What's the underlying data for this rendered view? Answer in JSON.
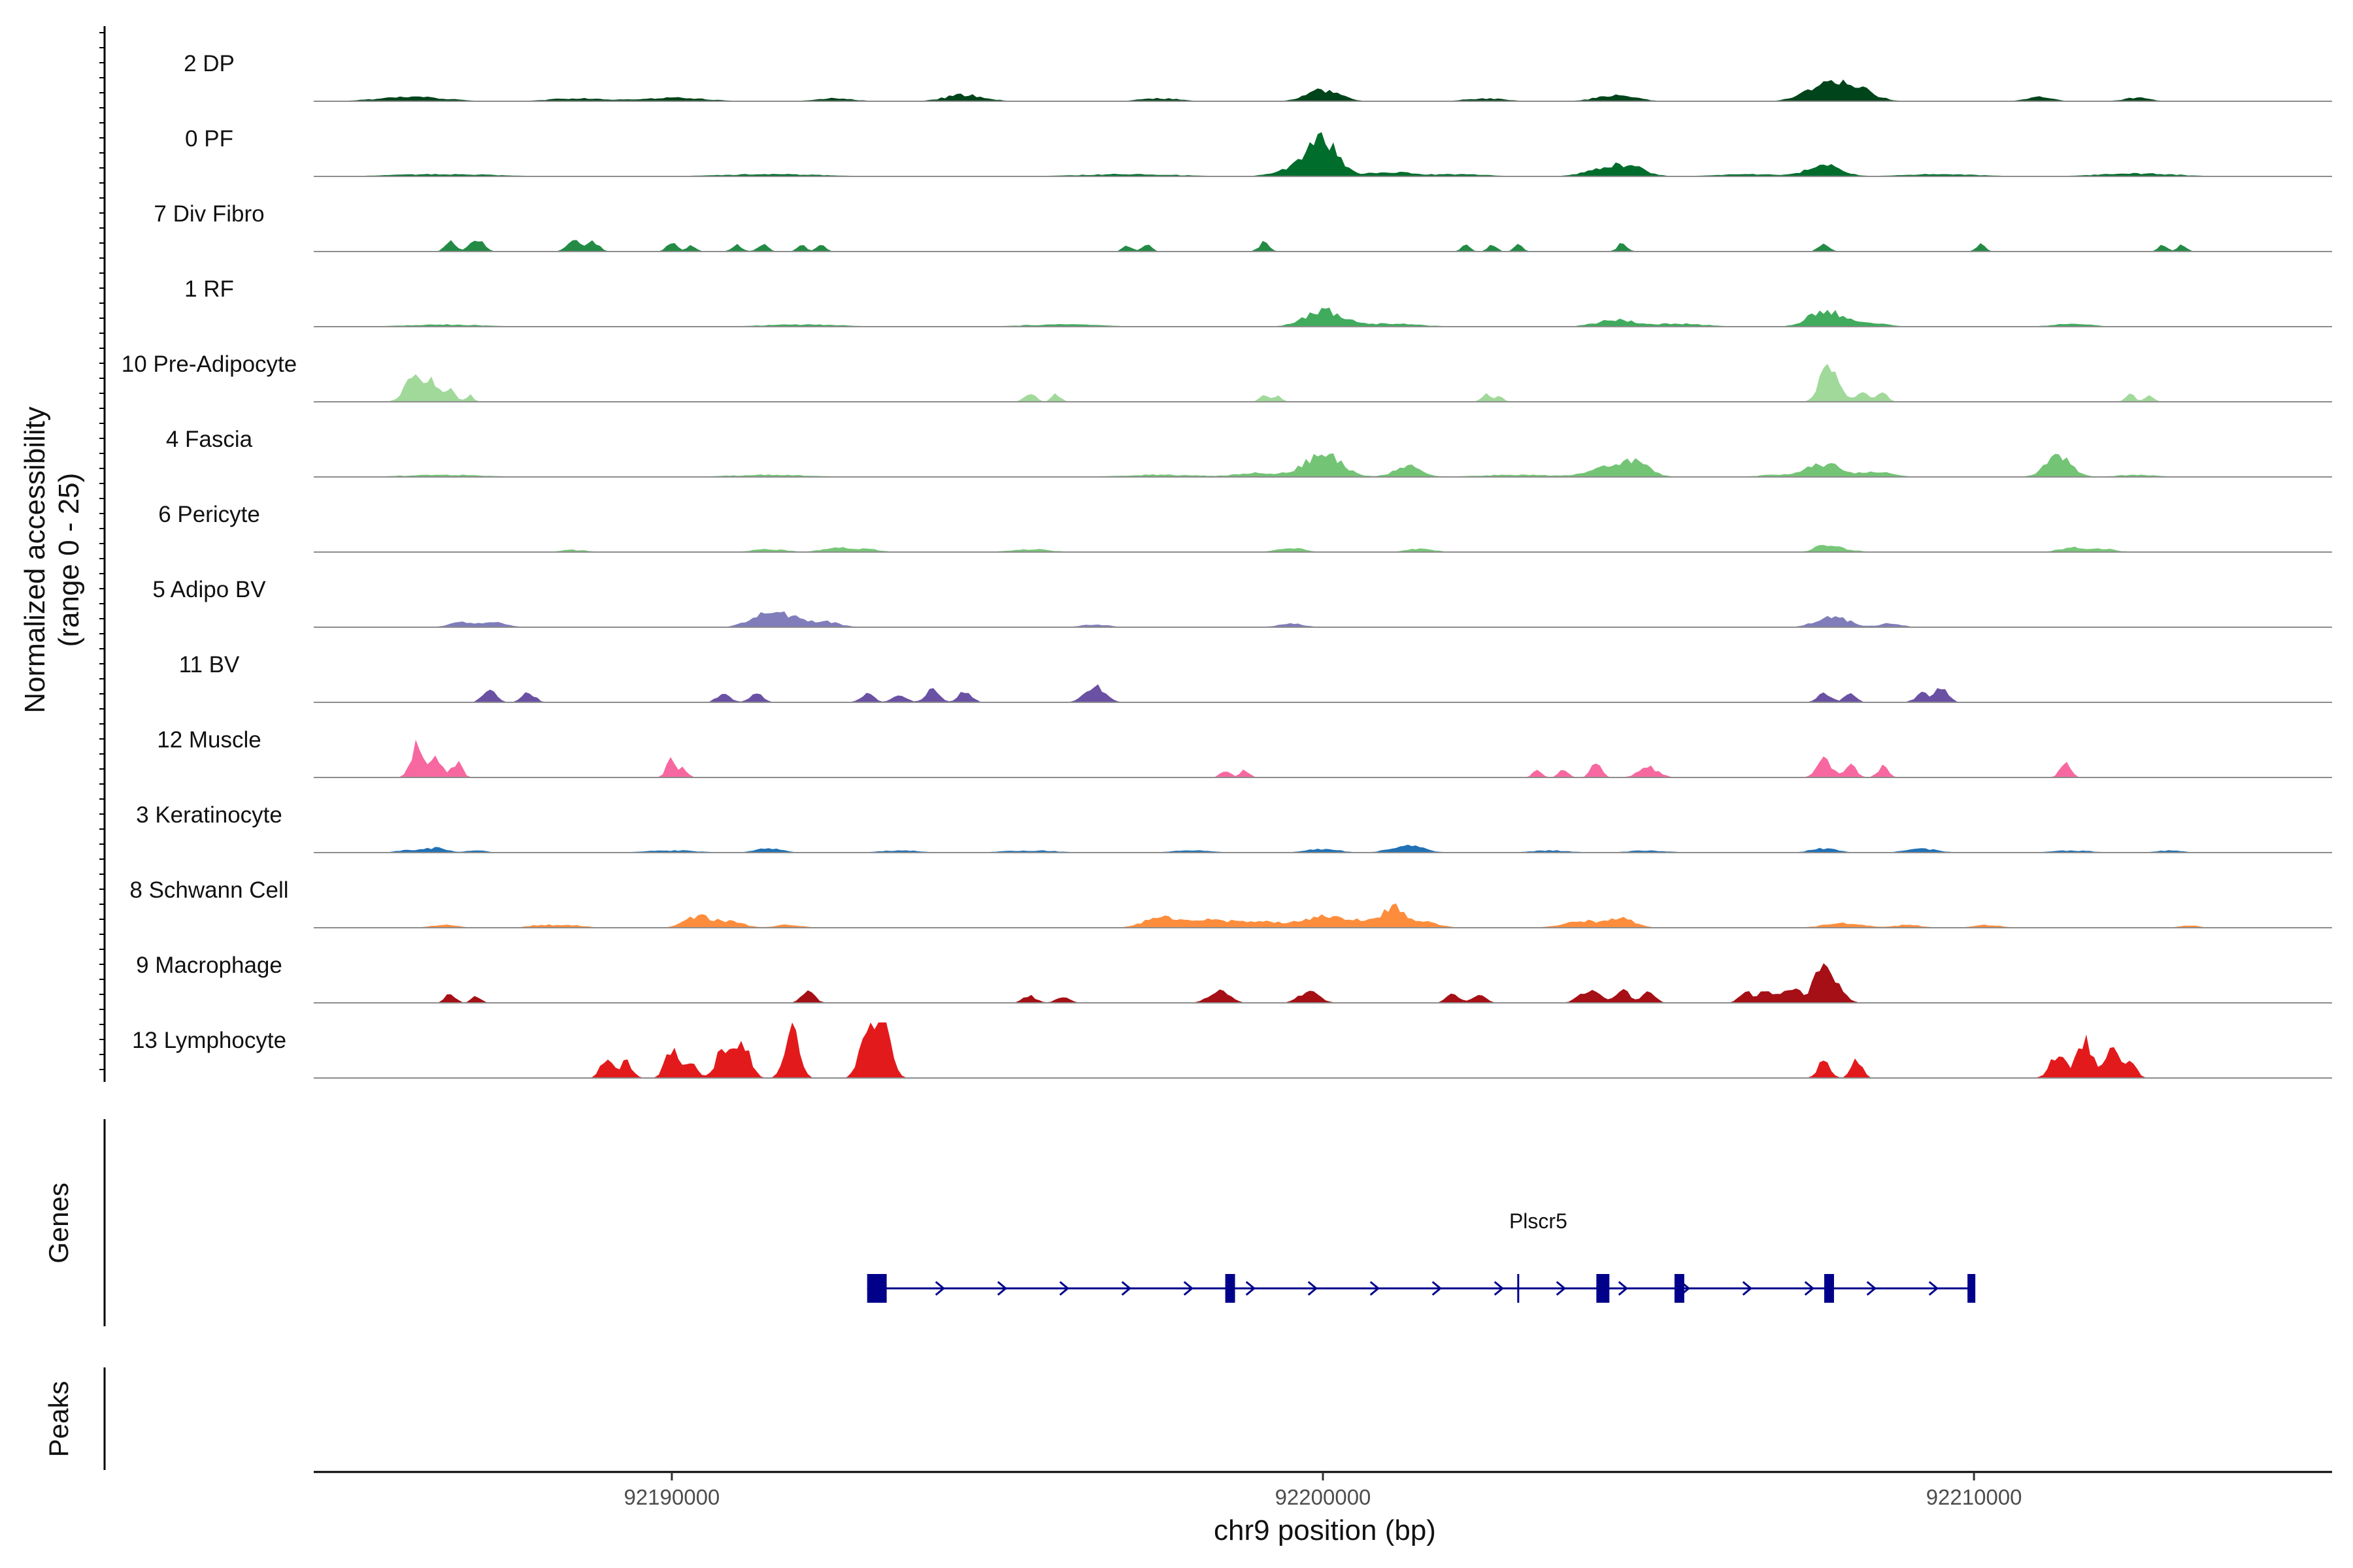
{
  "chart_data": {
    "type": "genome-browser-coverage",
    "ylabel_line1": "Normalized accessibility",
    "ylabel_line2": "(range 0 - 25)",
    "y_range": [
      0,
      25
    ],
    "xlabel": "chr9 position (bp)",
    "xlim": [
      92184500,
      92215500
    ],
    "x_ticks": [
      92190000,
      92200000,
      92210000
    ],
    "x_tick_labels": [
      "92190000",
      "92200000",
      "92210000"
    ],
    "panels": {
      "genes": "Genes",
      "peaks": "Peaks"
    },
    "tracks": [
      {
        "label": "2 DP",
        "color": "#00441b",
        "peaks": [
          [
            92186000,
            0.6,
            500
          ],
          [
            92188500,
            0.4,
            400
          ],
          [
            92190000,
            0.5,
            500
          ],
          [
            92192500,
            0.4,
            300
          ],
          [
            92194500,
            0.9,
            300
          ],
          [
            92197500,
            0.4,
            300
          ],
          [
            92200000,
            1.6,
            250
          ],
          [
            92202500,
            0.4,
            300
          ],
          [
            92204500,
            0.8,
            300
          ],
          [
            92207700,
            2.0,
            300
          ],
          [
            92208000,
            1.2,
            250
          ],
          [
            92208300,
            0.9,
            250
          ],
          [
            92211000,
            0.6,
            200
          ],
          [
            92212500,
            0.5,
            200
          ]
        ]
      },
      {
        "label": "0 PF",
        "color": "#006d2c",
        "peaks": [
          [
            92186500,
            0.3,
            800
          ],
          [
            92191500,
            0.3,
            800
          ],
          [
            92197000,
            0.3,
            800
          ],
          [
            92199500,
            1.0,
            250
          ],
          [
            92200000,
            5.0,
            230
          ],
          [
            92201000,
            0.6,
            300
          ],
          [
            92202000,
            0.3,
            500
          ],
          [
            92204300,
            0.9,
            300
          ],
          [
            92204700,
            1.2,
            250
          ],
          [
            92206500,
            0.3,
            500
          ],
          [
            92207700,
            1.5,
            250
          ],
          [
            92209500,
            0.3,
            600
          ],
          [
            92212500,
            0.4,
            600
          ]
        ]
      },
      {
        "label": "7 Div Fibro",
        "color": "#238b45",
        "peaks": [
          [
            92186600,
            1.4,
            80
          ],
          [
            92187000,
            1.8,
            100
          ],
          [
            92188500,
            1.6,
            100
          ],
          [
            92188800,
            1.3,
            90
          ],
          [
            92190000,
            1.1,
            80
          ],
          [
            92190300,
            0.9,
            70
          ],
          [
            92191000,
            1.0,
            80
          ],
          [
            92191400,
            1.1,
            80
          ],
          [
            92192000,
            0.9,
            70
          ],
          [
            92192300,
            0.9,
            70
          ],
          [
            92197000,
            0.9,
            70
          ],
          [
            92197300,
            0.9,
            70
          ],
          [
            92199100,
            1.3,
            80
          ],
          [
            92202200,
            0.9,
            70
          ],
          [
            92202600,
            0.9,
            70
          ],
          [
            92203000,
            0.9,
            70
          ],
          [
            92204600,
            1.1,
            80
          ],
          [
            92207700,
            1.2,
            80
          ],
          [
            92210100,
            1.0,
            70
          ],
          [
            92212900,
            0.9,
            70
          ],
          [
            92213200,
            0.9,
            70
          ]
        ]
      },
      {
        "label": "1 RF",
        "color": "#41ab5d",
        "peaks": [
          [
            92186500,
            0.3,
            600
          ],
          [
            92192000,
            0.3,
            600
          ],
          [
            92196000,
            0.3,
            600
          ],
          [
            92200000,
            2.2,
            280
          ],
          [
            92201000,
            0.4,
            500
          ],
          [
            92204500,
            0.9,
            300
          ],
          [
            92205500,
            0.4,
            400
          ],
          [
            92207700,
            2.2,
            240
          ],
          [
            92208300,
            0.6,
            300
          ],
          [
            92211500,
            0.4,
            300
          ]
        ]
      },
      {
        "label": "10 Pre-Adipocyte",
        "color": "#a1d99b",
        "peaks": [
          [
            92186000,
            3.4,
            120
          ],
          [
            92186300,
            3.1,
            110
          ],
          [
            92186600,
            1.6,
            80
          ],
          [
            92186900,
            0.9,
            60
          ],
          [
            92195500,
            1.3,
            80
          ],
          [
            92195900,
            1.0,
            70
          ],
          [
            92199100,
            0.9,
            70
          ],
          [
            92199300,
            0.9,
            70
          ],
          [
            92202500,
            1.0,
            70
          ],
          [
            92202700,
            0.9,
            60
          ],
          [
            92207700,
            4.4,
            100
          ],
          [
            92207900,
            3.0,
            100
          ],
          [
            92208300,
            1.4,
            100
          ],
          [
            92208600,
            1.1,
            80
          ],
          [
            92212400,
            1.0,
            70
          ],
          [
            92212700,
            0.9,
            70
          ]
        ]
      },
      {
        "label": "4 Fascia",
        "color": "#74c476",
        "peaks": [
          [
            92186500,
            0.3,
            600
          ],
          [
            92191500,
            0.3,
            600
          ],
          [
            92197500,
            0.3,
            600
          ],
          [
            92199000,
            0.6,
            300
          ],
          [
            92200000,
            3.2,
            280
          ],
          [
            92201300,
            1.5,
            200
          ],
          [
            92203000,
            0.3,
            600
          ],
          [
            92204300,
            1.1,
            250
          ],
          [
            92204800,
            2.0,
            220
          ],
          [
            92207000,
            0.3,
            300
          ],
          [
            92207700,
            1.8,
            250
          ],
          [
            92208500,
            0.7,
            250
          ],
          [
            92211300,
            2.7,
            200
          ],
          [
            92212500,
            0.3,
            300
          ]
        ]
      },
      {
        "label": "6 Pericyte",
        "color": "#78c679",
        "peaks": [
          [
            92188500,
            0.3,
            200
          ],
          [
            92191500,
            0.4,
            250
          ],
          [
            92192500,
            0.6,
            200
          ],
          [
            92193000,
            0.4,
            200
          ],
          [
            92195500,
            0.4,
            300
          ],
          [
            92199500,
            0.6,
            200
          ],
          [
            92201500,
            0.5,
            200
          ],
          [
            92207700,
            0.9,
            150
          ],
          [
            92208000,
            0.4,
            200
          ],
          [
            92211500,
            0.6,
            200
          ],
          [
            92212000,
            0.4,
            200
          ]
        ]
      },
      {
        "label": "5 Adipo BV",
        "color": "#807dba",
        "peaks": [
          [
            92186800,
            0.7,
            200
          ],
          [
            92187300,
            0.6,
            180
          ],
          [
            92191300,
            1.1,
            200
          ],
          [
            92191600,
            1.2,
            200
          ],
          [
            92191900,
            1.0,
            200
          ],
          [
            92192400,
            0.7,
            200
          ],
          [
            92196500,
            0.4,
            200
          ],
          [
            92199500,
            0.5,
            200
          ],
          [
            92207700,
            1.0,
            200
          ],
          [
            92208000,
            0.8,
            180
          ],
          [
            92208700,
            0.5,
            180
          ]
        ]
      },
      {
        "label": "11 BV",
        "color": "#6a51a3",
        "peaks": [
          [
            92187200,
            1.8,
            100
          ],
          [
            92187800,
            1.3,
            100
          ],
          [
            92190800,
            1.3,
            100
          ],
          [
            92191300,
            1.2,
            100
          ],
          [
            92193000,
            1.3,
            100
          ],
          [
            92193500,
            1.2,
            100
          ],
          [
            92194000,
            1.7,
            100
          ],
          [
            92194500,
            1.6,
            100
          ],
          [
            92196500,
            2.2,
            150
          ],
          [
            92207700,
            1.4,
            100
          ],
          [
            92208100,
            1.1,
            90
          ],
          [
            92209200,
            1.2,
            100
          ],
          [
            92209500,
            1.9,
            100
          ]
        ]
      },
      {
        "label": "12 Muscle",
        "color": "#f768a1",
        "peaks": [
          [
            92186100,
            4.6,
            100
          ],
          [
            92186400,
            2.6,
            80
          ],
          [
            92186700,
            2.0,
            80
          ],
          [
            92190000,
            2.4,
            80
          ],
          [
            92190200,
            1.1,
            60
          ],
          [
            92198500,
            1.1,
            70
          ],
          [
            92198800,
            1.1,
            70
          ],
          [
            92203300,
            1.0,
            70
          ],
          [
            92203700,
            1.2,
            70
          ],
          [
            92204200,
            2.0,
            80
          ],
          [
            92205000,
            1.4,
            150
          ],
          [
            92207700,
            2.6,
            110
          ],
          [
            92208100,
            1.7,
            90
          ],
          [
            92208600,
            1.5,
            80
          ],
          [
            92211400,
            2.0,
            80
          ]
        ]
      },
      {
        "label": "3 Keratinocyte",
        "color": "#2171b5",
        "peaks": [
          [
            92186000,
            0.4,
            200
          ],
          [
            92186400,
            0.6,
            150
          ],
          [
            92187000,
            0.3,
            150
          ],
          [
            92190000,
            0.3,
            400
          ],
          [
            92191500,
            0.6,
            200
          ],
          [
            92193500,
            0.3,
            300
          ],
          [
            92195500,
            0.3,
            400
          ],
          [
            92198000,
            0.3,
            300
          ],
          [
            92200000,
            0.5,
            250
          ],
          [
            92201300,
            1.0,
            250
          ],
          [
            92203500,
            0.3,
            300
          ],
          [
            92205000,
            0.3,
            300
          ],
          [
            92207700,
            0.6,
            200
          ],
          [
            92209200,
            0.5,
            250
          ],
          [
            92211500,
            0.3,
            300
          ],
          [
            92213000,
            0.3,
            200
          ]
        ]
      },
      {
        "label": "8 Schwann Cell",
        "color": "#fd8d3c",
        "peaks": [
          [
            92186500,
            0.4,
            200
          ],
          [
            92188000,
            0.4,
            200
          ],
          [
            92188500,
            0.3,
            200
          ],
          [
            92190400,
            1.5,
            200
          ],
          [
            92190900,
            0.9,
            200
          ],
          [
            92191800,
            0.4,
            200
          ],
          [
            92197500,
            1.4,
            250
          ],
          [
            92198200,
            1.0,
            300
          ],
          [
            92199000,
            0.9,
            400
          ],
          [
            92200000,
            1.5,
            300
          ],
          [
            92200600,
            0.9,
            250
          ],
          [
            92201100,
            3.0,
            150
          ],
          [
            92201600,
            0.8,
            200
          ],
          [
            92204000,
            0.9,
            300
          ],
          [
            92204600,
            1.2,
            200
          ],
          [
            92208000,
            0.6,
            300
          ],
          [
            92209000,
            0.4,
            200
          ],
          [
            92210200,
            0.4,
            200
          ],
          [
            92213300,
            0.3,
            150
          ]
        ]
      },
      {
        "label": "9 Macrophage",
        "color": "#a50f15",
        "peaks": [
          [
            92186600,
            1.2,
            80
          ],
          [
            92187000,
            1.0,
            70
          ],
          [
            92192100,
            1.5,
            100
          ],
          [
            92195500,
            1.0,
            100
          ],
          [
            92196000,
            1.0,
            100
          ],
          [
            92198400,
            1.9,
            150
          ],
          [
            92199800,
            1.7,
            150
          ],
          [
            92202000,
            1.2,
            100
          ],
          [
            92202400,
            1.1,
            100
          ],
          [
            92204100,
            1.9,
            150
          ],
          [
            92204600,
            1.6,
            120
          ],
          [
            92205000,
            1.4,
            100
          ],
          [
            92206500,
            1.4,
            100
          ],
          [
            92206800,
            1.6,
            100
          ],
          [
            92207200,
            2.1,
            150
          ],
          [
            92207800,
            3.9,
            150
          ],
          [
            92207600,
            2.4,
            100
          ]
        ]
      },
      {
        "label": "13 Lymphocyte",
        "color": "#e31a1c",
        "peaks": [
          [
            92189000,
            2.8,
            90
          ],
          [
            92189300,
            2.4,
            90
          ],
          [
            92190000,
            3.8,
            100
          ],
          [
            92190300,
            2.4,
            90
          ],
          [
            92190800,
            4.4,
            110
          ],
          [
            92191100,
            4.2,
            110
          ],
          [
            92191800,
            3.2,
            100
          ],
          [
            92191900,
            4.2,
            90
          ],
          [
            92193000,
            7.6,
            110
          ],
          [
            92193250,
            8.6,
            110
          ],
          [
            92207700,
            2.6,
            90
          ],
          [
            92208200,
            2.6,
            80
          ],
          [
            92211300,
            3.4,
            120
          ],
          [
            92211700,
            5.2,
            110
          ],
          [
            92212100,
            4.2,
            110
          ],
          [
            92212400,
            2.2,
            90
          ]
        ]
      }
    ],
    "gene": {
      "name": "Plscr5",
      "start": 92193000,
      "end": 92210000,
      "strand": "+",
      "exons": [
        [
          92193000,
          92193300
        ],
        [
          92198500,
          92198650
        ],
        [
          92204200,
          92204400
        ],
        [
          92205400,
          92205550
        ],
        [
          92207700,
          92207850
        ],
        [
          92209900,
          92210000
        ]
      ],
      "marker_at": 92203000
    }
  }
}
